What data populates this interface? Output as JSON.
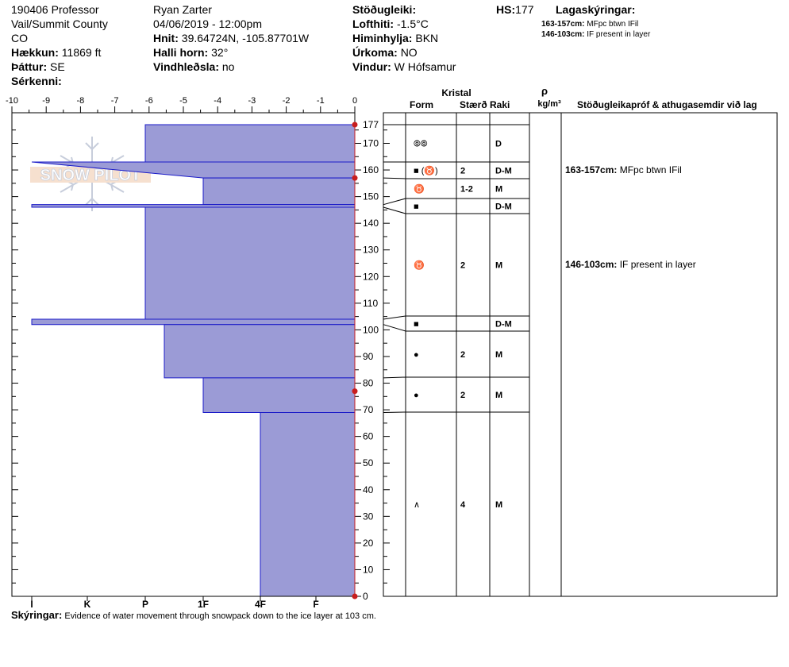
{
  "header": {
    "site_id": "190406 Professor",
    "region": "Vail/Summit County",
    "state": "CO",
    "elevation_label": "Hækkun:",
    "elevation": "11869 ft",
    "aspect_label": "Þáttur:",
    "aspect": "SE",
    "features_label": "Sérkenni:",
    "observer": "Ryan Zarter",
    "datetime": "04/06/2019 - 12:00pm",
    "coords_label": "Hnit:",
    "coords": "39.64724N, -105.87701W",
    "slope_label": "Halli horn:",
    "slope": "32°",
    "wind_loading_label": "Vindhleðsla:",
    "wind_loading": "no",
    "stability_label": "Stöðugleiki:",
    "air_temp_label": "Lofthiti:",
    "air_temp": "-1.5°C",
    "sky_label": "Himinhylja:",
    "sky": "BKN",
    "precip_label": "Úrkoma:",
    "precip": "NO",
    "wind_label": "Vindur:",
    "wind": "W Hófsamur",
    "hs_label": "HS:",
    "hs": "177",
    "legend_title": "Lagaskýringar:",
    "legend_notes": [
      {
        "range": "163-157cm:",
        "text": "MFpc btwn IFil"
      },
      {
        "range": "146-103cm:",
        "text": "IF present in layer"
      }
    ]
  },
  "watermark": "SNOW PILOT",
  "table": {
    "crystal_header": "Kristal",
    "form_header": "Form",
    "size_header": "Stærð",
    "moisture_header": "Raki",
    "density_header": "ρ",
    "density_unit": "kg/m³",
    "comments_header": "Stöðugleikapróf & athugasemdir við lag",
    "layers": [
      {
        "top": 177,
        "bottom": 163,
        "form": "⦾⦾",
        "size": "",
        "moisture": "D"
      },
      {
        "top": 163,
        "bottom": 157,
        "form": "■ (♉)",
        "size": "2",
        "moisture": "D-M"
      },
      {
        "top": 157,
        "bottom": 147,
        "form": "♉",
        "size": "1-2",
        "moisture": "M"
      },
      {
        "top": 147,
        "bottom": 146,
        "form": "■",
        "size": "",
        "moisture": "D-M"
      },
      {
        "top": 146,
        "bottom": 104,
        "form": "♉",
        "size": "2",
        "moisture": "M"
      },
      {
        "top": 104,
        "bottom": 102,
        "form": "■",
        "size": "",
        "moisture": "D-M"
      },
      {
        "top": 102,
        "bottom": 82,
        "form": "●",
        "size": "2",
        "moisture": "M"
      },
      {
        "top": 82,
        "bottom": 69,
        "form": "●",
        "size": "2",
        "moisture": "M"
      },
      {
        "top": 69,
        "bottom": 0,
        "form": "∧",
        "size": "4",
        "moisture": "M"
      }
    ],
    "comments": [
      {
        "height": 160,
        "range": "163-157cm:",
        "text": "MFpc btwn IFil"
      },
      {
        "height": 124.5,
        "range": "146-103cm:",
        "text": "IF present in layer"
      }
    ]
  },
  "footer": {
    "label": "Skýringar:",
    "text": "Evidence of water movement through snowpack down to the ice layer at 103 cm."
  },
  "chart_data": {
    "type": "area",
    "temp_axis": {
      "min": -10,
      "max": 0,
      "ticks": [
        "-10",
        "-9",
        "-8",
        "-7",
        "-6",
        "-5",
        "-4",
        "-3",
        "-2",
        "-1",
        "0"
      ]
    },
    "height_axis": {
      "min": 0,
      "max": 177,
      "ticks": [
        0,
        10,
        20,
        30,
        40,
        50,
        60,
        70,
        80,
        90,
        100,
        110,
        120,
        130,
        140,
        150,
        160,
        170,
        177
      ]
    },
    "hardness_ticks": [
      "I",
      "K",
      "P",
      "1F",
      "4F",
      "F"
    ],
    "hardness_profile": [
      {
        "top": 177,
        "bottom": 163,
        "hardness": "P"
      },
      {
        "top": 163,
        "bottom": 157,
        "hardness": "I→1F"
      },
      {
        "top": 157,
        "bottom": 147,
        "hardness": "1F"
      },
      {
        "top": 147,
        "bottom": 146,
        "hardness": "I"
      },
      {
        "top": 146,
        "bottom": 104,
        "hardness": "P"
      },
      {
        "top": 104,
        "bottom": 102,
        "hardness": "I"
      },
      {
        "top": 102,
        "bottom": 82,
        "hardness": "P+"
      },
      {
        "top": 82,
        "bottom": 69,
        "hardness": "1F"
      },
      {
        "top": 69,
        "bottom": 0,
        "hardness": "4F"
      }
    ],
    "temperature_points": [
      {
        "height": 177,
        "temp": 0
      },
      {
        "height": 157,
        "temp": 0
      },
      {
        "height": 77,
        "temp": 0
      },
      {
        "height": 0,
        "temp": 0
      }
    ],
    "colors": {
      "fill": "#9b9bd6",
      "edge": "#1b1bc8",
      "temp": "#c81e1e"
    }
  }
}
